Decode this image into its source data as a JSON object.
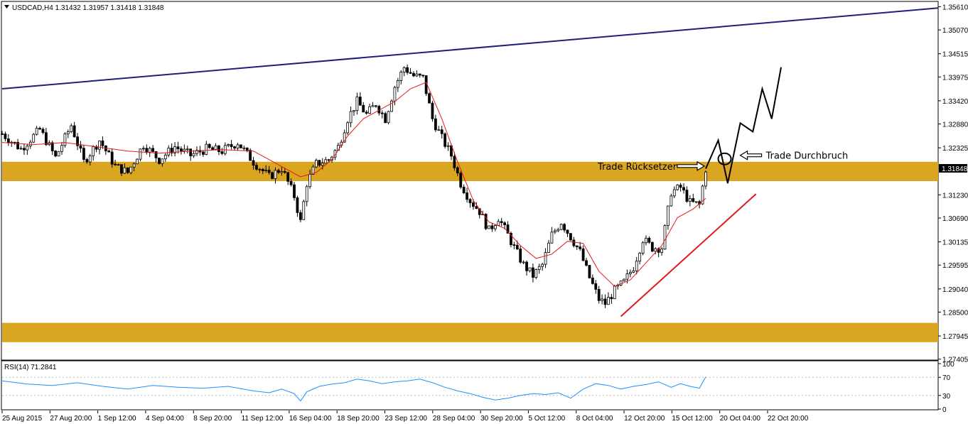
{
  "header": {
    "symbol_info": "USDCAD,H4  1.31432 1.31957 1.31418 1.31848"
  },
  "colors": {
    "bull": "#000000",
    "bear": "#000000",
    "ma": "#e31a1c",
    "trendline_upper": "#1f1f7a",
    "trendline_support": "#e31a1c",
    "zone": "#daa520",
    "rsi": "#1e90ff",
    "current_price_bg": "#000000"
  },
  "chart_data": [
    {
      "type": "line",
      "name": "price-panel",
      "title": "USDCAD,H4",
      "ohlc_header": {
        "open": 1.31432,
        "high": 1.31957,
        "low": 1.31418,
        "close": 1.31848
      },
      "ylim": [
        1.274,
        1.357
      ],
      "y_ticks": [
        "1.35610",
        "1.35070",
        "1.34515",
        "1.33975",
        "1.33420",
        "1.32880",
        "1.32325",
        "1.31848",
        "1.31230",
        "1.30690",
        "1.30135",
        "1.29595",
        "1.29040",
        "1.28500",
        "1.27945",
        "1.27405"
      ],
      "current_price": "1.31848",
      "x_labels": [
        "25 Aug 2015",
        "27 Aug 20:00",
        "1 Sep 12:00",
        "4 Sep 04:00",
        "8 Sep 20:00",
        "11 Sep 12:00",
        "16 Sep 04:00",
        "18 Sep 20:00",
        "23 Sep 12:00",
        "28 Sep 04:00",
        "30 Sep 20:00",
        "5 Oct 12:00",
        "8 Oct 04:00",
        "12 Oct 20:00",
        "15 Oct 12:00",
        "20 Oct 04:00",
        "22 Oct 20:00"
      ],
      "close_path": [
        [
          0,
          1.3265
        ],
        [
          6,
          1.323
        ],
        [
          12,
          1.3275
        ],
        [
          17,
          1.321
        ],
        [
          22,
          1.3285
        ],
        [
          26,
          1.32
        ],
        [
          31,
          1.325
        ],
        [
          36,
          1.319
        ],
        [
          40,
          1.3175
        ],
        [
          45,
          1.324
        ],
        [
          50,
          1.3205
        ],
        [
          55,
          1.3235
        ],
        [
          60,
          1.3215
        ],
        [
          65,
          1.323
        ],
        [
          70,
          1.3225
        ],
        [
          75,
          1.3245
        ],
        [
          80,
          1.32
        ],
        [
          85,
          1.3165
        ],
        [
          89,
          1.3185
        ],
        [
          93,
          1.312
        ],
        [
          95,
          1.306
        ],
        [
          97,
          1.315
        ],
        [
          100,
          1.3195
        ],
        [
          104,
          1.3205
        ],
        [
          107,
          1.3235
        ],
        [
          110,
          1.33
        ],
        [
          113,
          1.334
        ],
        [
          116,
          1.331
        ],
        [
          119,
          1.3335
        ],
        [
          122,
          1.33
        ],
        [
          125,
          1.3375
        ],
        [
          128,
          1.342
        ],
        [
          131,
          1.34
        ],
        [
          134,
          1.3395
        ],
        [
          137,
          1.33
        ],
        [
          140,
          1.3255
        ],
        [
          143,
          1.3215
        ],
        [
          146,
          1.315
        ],
        [
          149,
          1.311
        ],
        [
          152,
          1.3085
        ],
        [
          155,
          1.304
        ],
        [
          158,
          1.307
        ],
        [
          161,
          1.303
        ],
        [
          163,
          1.3
        ],
        [
          166,
          1.296
        ],
        [
          169,
          1.2935
        ],
        [
          172,
          1.296
        ],
        [
          175,
          1.303
        ],
        [
          178,
          1.306
        ],
        [
          181,
          1.3025
        ],
        [
          184,
          1.299
        ],
        [
          187,
          1.293
        ],
        [
          190,
          1.288
        ],
        [
          192,
          1.287
        ],
        [
          195,
          1.29
        ],
        [
          198,
          1.292
        ],
        [
          201,
          1.2955
        ],
        [
          204,
          1.302
        ],
        [
          207,
          1.3
        ],
        [
          210,
          1.3
        ],
        [
          213,
          1.313
        ],
        [
          216,
          1.314
        ],
        [
          219,
          1.3105
        ],
        [
          222,
          1.31
        ],
        [
          224,
          1.3184
        ]
      ],
      "ma_path": [
        [
          0,
          1.3245
        ],
        [
          10,
          1.324
        ],
        [
          20,
          1.3245
        ],
        [
          30,
          1.3235
        ],
        [
          40,
          1.3225
        ],
        [
          50,
          1.322
        ],
        [
          60,
          1.3225
        ],
        [
          70,
          1.3228
        ],
        [
          80,
          1.3225
        ],
        [
          90,
          1.3185
        ],
        [
          95,
          1.3165
        ],
        [
          100,
          1.3175
        ],
        [
          105,
          1.3205
        ],
        [
          110,
          1.326
        ],
        [
          115,
          1.33
        ],
        [
          120,
          1.332
        ],
        [
          125,
          1.334
        ],
        [
          130,
          1.337
        ],
        [
          135,
          1.3385
        ],
        [
          140,
          1.33
        ],
        [
          145,
          1.32
        ],
        [
          150,
          1.311
        ],
        [
          155,
          1.306
        ],
        [
          160,
          1.3045
        ],
        [
          165,
          1.3005
        ],
        [
          170,
          1.2975
        ],
        [
          175,
          1.2985
        ],
        [
          180,
          1.3015
        ],
        [
          185,
          1.301
        ],
        [
          190,
          1.2945
        ],
        [
          195,
          1.291
        ],
        [
          200,
          1.2925
        ],
        [
          205,
          1.2965
        ],
        [
          210,
          1.3005
        ],
        [
          215,
          1.307
        ],
        [
          220,
          1.309
        ],
        [
          224,
          1.3115
        ]
      ],
      "upper_trendline": [
        [
          0,
          1.337
        ],
        [
          298,
          1.3558
        ]
      ],
      "support_trendline": [
        [
          197,
          1.284
        ],
        [
          240,
          1.3125
        ]
      ],
      "zones": [
        [
          1.3155,
          1.32
        ],
        [
          1.278,
          1.2825
        ]
      ],
      "projection_path": [
        [
          224,
          1.3184
        ],
        [
          228,
          1.325
        ],
        [
          231,
          1.315
        ],
        [
          235,
          1.329
        ],
        [
          239,
          1.327
        ],
        [
          242,
          1.337
        ],
        [
          245,
          1.33
        ],
        [
          248,
          1.342
        ]
      ],
      "annotations": [
        {
          "text": "Trade Rücksetzer",
          "arrow_at_x": 224,
          "arrow_at_y": 1.319
        },
        {
          "text": "Trade Durchbruch",
          "arrow_at_x": 235,
          "arrow_at_y": 1.3215
        }
      ],
      "x_range": [
        0,
        298
      ]
    },
    {
      "type": "line",
      "name": "rsi-panel",
      "title": "RSI(14) 71.2841",
      "ylim": [
        0,
        100
      ],
      "y_ticks": [
        "100",
        "70",
        "30",
        "0"
      ],
      "levels": [
        70,
        30
      ],
      "path": [
        [
          0,
          62
        ],
        [
          8,
          55
        ],
        [
          16,
          52
        ],
        [
          24,
          58
        ],
        [
          32,
          50
        ],
        [
          40,
          44
        ],
        [
          48,
          52
        ],
        [
          56,
          48
        ],
        [
          64,
          46
        ],
        [
          72,
          50
        ],
        [
          80,
          40
        ],
        [
          85,
          36
        ],
        [
          89,
          44
        ],
        [
          93,
          34
        ],
        [
          95,
          18
        ],
        [
          97,
          38
        ],
        [
          101,
          50
        ],
        [
          105,
          55
        ],
        [
          109,
          58
        ],
        [
          113,
          66
        ],
        [
          117,
          62
        ],
        [
          121,
          56
        ],
        [
          125,
          60
        ],
        [
          129,
          62
        ],
        [
          133,
          66
        ],
        [
          137,
          58
        ],
        [
          141,
          48
        ],
        [
          145,
          40
        ],
        [
          149,
          34
        ],
        [
          153,
          26
        ],
        [
          157,
          20
        ],
        [
          161,
          24
        ],
        [
          165,
          30
        ],
        [
          169,
          34
        ],
        [
          173,
          32
        ],
        [
          177,
          36
        ],
        [
          181,
          24
        ],
        [
          185,
          44
        ],
        [
          189,
          56
        ],
        [
          193,
          52
        ],
        [
          197,
          44
        ],
        [
          201,
          50
        ],
        [
          205,
          54
        ],
        [
          209,
          60
        ],
        [
          213,
          48
        ],
        [
          216,
          56
        ],
        [
          219,
          50
        ],
        [
          222,
          46
        ],
        [
          224,
          71
        ]
      ]
    }
  ]
}
